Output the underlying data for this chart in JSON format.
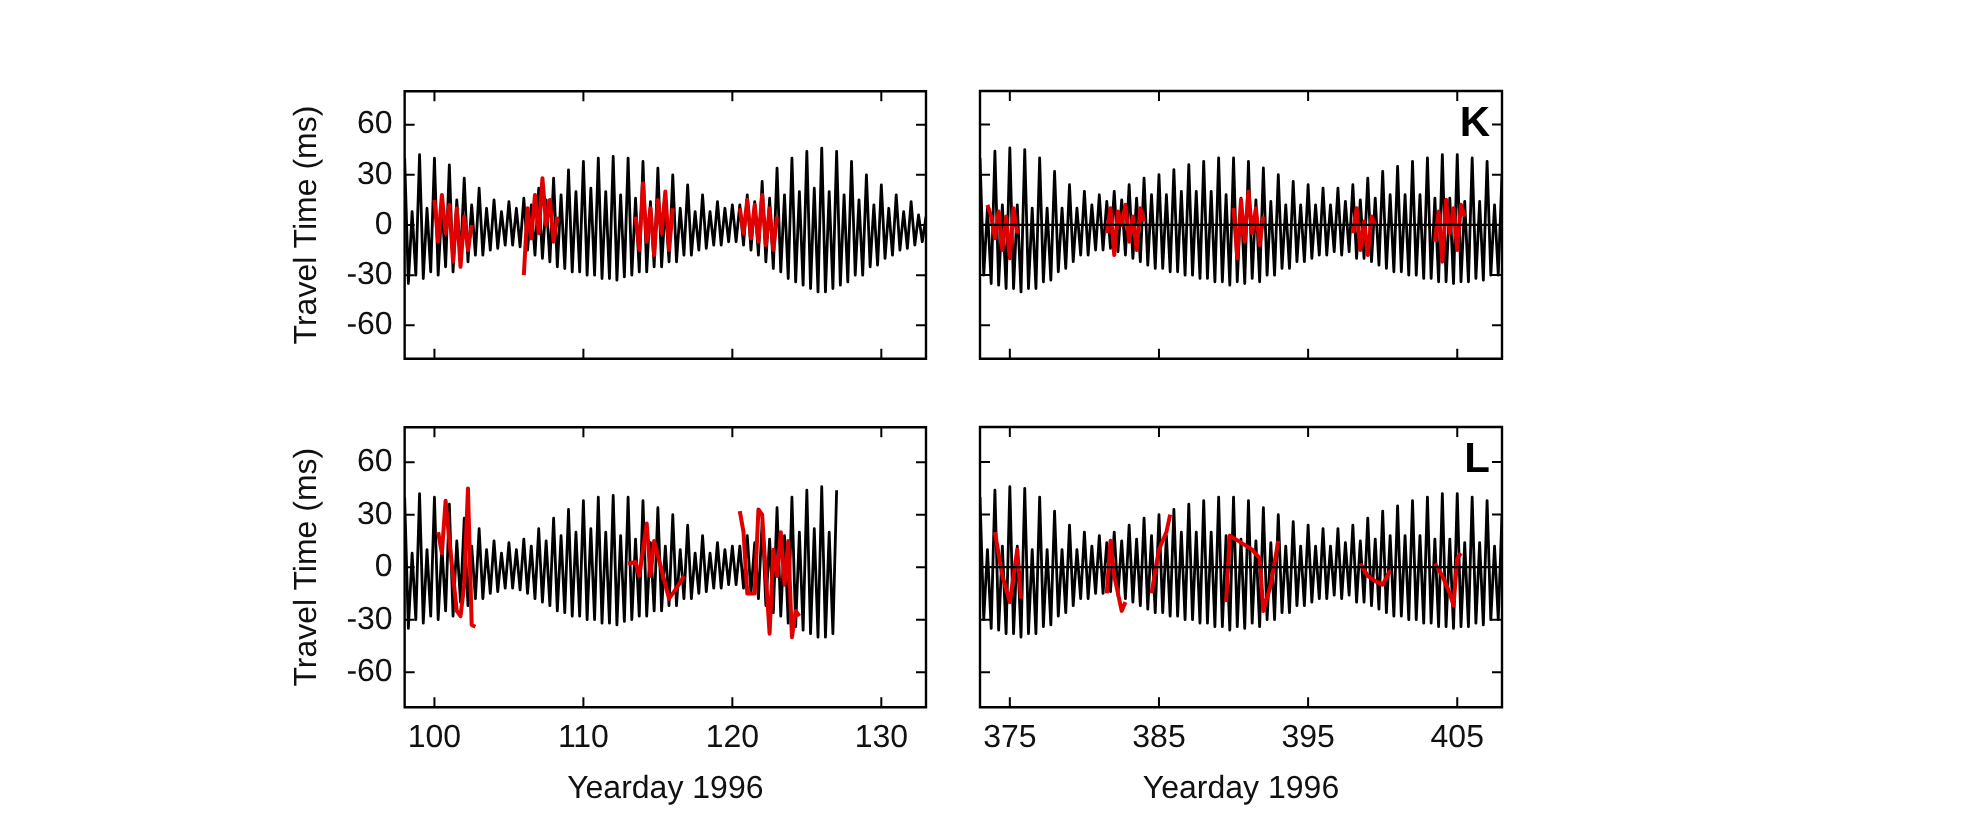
{
  "chart_data": [
    {
      "type": "line",
      "ylabel": "Travel Time (ms)",
      "xlim": [
        98,
        133
      ],
      "xticks": [
        100,
        110,
        120,
        130
      ],
      "ylim": [
        -80,
        80
      ],
      "yticks": [
        -60,
        -30,
        0,
        30,
        60
      ],
      "tick_labels": "y",
      "grid": false,
      "legend": false,
      "marker": "none",
      "line_style": "solid",
      "x": [
        98,
        98.25,
        98.5,
        98.75,
        99,
        99.25,
        99.5,
        99.75,
        100,
        100.25,
        100.5,
        100.75,
        101,
        101.25,
        101.5,
        101.75,
        102,
        102.25,
        102.5,
        102.75,
        103,
        103.25,
        103.5,
        103.75,
        104,
        104.25,
        104.5,
        104.75,
        105,
        105.25,
        105.5,
        105.75,
        106,
        106.25,
        106.5,
        106.75,
        107,
        107.25,
        107.5,
        107.75,
        108,
        108.25,
        108.5,
        108.75,
        109,
        109.25,
        109.5,
        109.75,
        110,
        110.25,
        110.5,
        110.75,
        111,
        111.25,
        111.5,
        111.75,
        112,
        112.25,
        112.5,
        112.75,
        113,
        113.25,
        113.5,
        113.75,
        114,
        114.25,
        114.5,
        114.75,
        115,
        115.25,
        115.5,
        115.75,
        116,
        116.25,
        116.5,
        116.75,
        117,
        117.25,
        117.5,
        117.75,
        118,
        118.25,
        118.5,
        118.75,
        119,
        119.25,
        119.5,
        119.75,
        120,
        120.25,
        120.5,
        120.75,
        121,
        121.25,
        121.5,
        121.75,
        122,
        122.25,
        122.5,
        122.75,
        123,
        123.25,
        123.5,
        123.75,
        124,
        124.25,
        124.5,
        124.75,
        125,
        125.25,
        125.5,
        125.75,
        126,
        126.25,
        126.5,
        126.75,
        127,
        127.25,
        127.5,
        127.75,
        128,
        128.25,
        128.5,
        128.75,
        129,
        129.25,
        129.5,
        129.75,
        130,
        130.25,
        130.5,
        130.75,
        131,
        131.25,
        131.5,
        131.75,
        132,
        132.25,
        132.5,
        132.75,
        133
      ],
      "series": [
        {
          "color": "#000000",
          "values": [
            40,
            -35,
            8,
            -30,
            42,
            -32,
            10,
            -28,
            40,
            -30,
            12,
            -25,
            36,
            -28,
            15,
            -20,
            28,
            -22,
            12,
            -18,
            22,
            -18,
            10,
            -15,
            15,
            -14,
            8,
            -12,
            14,
            -12,
            10,
            -13,
            16,
            -15,
            12,
            -18,
            22,
            -20,
            15,
            -22,
            28,
            -25,
            18,
            -26,
            33,
            -28,
            20,
            -28,
            38,
            -30,
            22,
            -30,
            40,
            -32,
            20,
            -32,
            41,
            -33,
            18,
            -31,
            40,
            -30,
            16,
            -28,
            38,
            -28,
            14,
            -25,
            34,
            -25,
            12,
            -22,
            30,
            -22,
            10,
            -18,
            24,
            -18,
            8,
            -15,
            18,
            -14,
            8,
            -12,
            14,
            -12,
            10,
            -10,
            12,
            -10,
            12,
            -12,
            18,
            -15,
            14,
            -18,
            26,
            -22,
            16,
            -26,
            34,
            -28,
            18,
            -32,
            40,
            -34,
            20,
            -36,
            44,
            -38,
            22,
            -40,
            46,
            -40,
            20,
            -38,
            44,
            -36,
            18,
            -34,
            38,
            -30,
            15,
            -30,
            30,
            -25,
            12,
            -24,
            24,
            -20,
            10,
            -18,
            18,
            -15,
            8,
            -14,
            14,
            -12,
            6,
            -10,
            5
          ]
        },
        {
          "color": "#e00000",
          "x": [
            100,
            100.25,
            100.5,
            100.75,
            101,
            101.25,
            101.5,
            101.75,
            102,
            102.25,
            102.5,
            104,
            106,
            106.25,
            106.5,
            106.75,
            107,
            107.25,
            107.5,
            107.75,
            108,
            108.25,
            111,
            113.5,
            113.75,
            114,
            114.25,
            114.5,
            114.75,
            115,
            115.25,
            115.5,
            115.75,
            116,
            118,
            120.5,
            120.75,
            121,
            121.25,
            121.5,
            121.75,
            122,
            122.25,
            122.5,
            122.75,
            123
          ],
          "values": [
            15,
            -10,
            18,
            -5,
            12,
            -22,
            10,
            -25,
            5,
            -15,
            0,
            null,
            -30,
            10,
            -8,
            18,
            -5,
            28,
            0,
            15,
            -10,
            5,
            null,
            5,
            -15,
            25,
            -10,
            10,
            -18,
            15,
            -5,
            20,
            -15,
            10,
            null,
            10,
            -5,
            15,
            -8,
            12,
            -10,
            18,
            -12,
            10,
            -15,
            5
          ]
        }
      ]
    },
    {
      "type": "line",
      "xlim": [
        373,
        408
      ],
      "xticks": [
        375,
        385,
        395,
        405
      ],
      "ylim": [
        -80,
        80
      ],
      "yticks": [
        -60,
        -30,
        0,
        30,
        60
      ],
      "tick_labels": false,
      "grid": false,
      "legend": false,
      "marker": "none",
      "line_style": "solid",
      "annotations": [
        "K"
      ],
      "ref_lines": [
        {
          "axis": "y",
          "value": 0,
          "color": "#000000"
        }
      ],
      "x": [
        373,
        373.25,
        373.5,
        373.75,
        374,
        374.25,
        374.5,
        374.75,
        375,
        375.25,
        375.5,
        375.75,
        376,
        376.25,
        376.5,
        376.75,
        377,
        377.25,
        377.5,
        377.75,
        378,
        378.25,
        378.5,
        378.75,
        379,
        379.25,
        379.5,
        379.75,
        380,
        380.25,
        380.5,
        380.75,
        381,
        381.25,
        381.5,
        381.75,
        382,
        382.25,
        382.5,
        382.75,
        383,
        383.25,
        383.5,
        383.75,
        384,
        384.25,
        384.5,
        384.75,
        385,
        385.25,
        385.5,
        385.75,
        386,
        386.25,
        386.5,
        386.75,
        387,
        387.25,
        387.5,
        387.75,
        388,
        388.25,
        388.5,
        388.75,
        389,
        389.25,
        389.5,
        389.75,
        390,
        390.25,
        390.5,
        390.75,
        391,
        391.25,
        391.5,
        391.75,
        392,
        392.25,
        392.5,
        392.75,
        393,
        393.25,
        393.5,
        393.75,
        394,
        394.25,
        394.5,
        394.75,
        395,
        395.25,
        395.5,
        395.75,
        396,
        396.25,
        396.5,
        396.75,
        397,
        397.25,
        397.5,
        397.75,
        398,
        398.25,
        398.5,
        398.75,
        399,
        399.25,
        399.5,
        399.75,
        400,
        400.25,
        400.5,
        400.75,
        401,
        401.25,
        401.5,
        401.75,
        402,
        402.25,
        402.5,
        402.75,
        403,
        403.25,
        403.5,
        403.75,
        404,
        404.25,
        404.5,
        404.75,
        405,
        405.25,
        405.5,
        405.75,
        406,
        406.25,
        406.5,
        406.75,
        407,
        407.25,
        407.5,
        407.75,
        408
      ],
      "series": [
        {
          "type": "line",
          "color": "#000000",
          "values": [
            40,
            -30,
            10,
            -35,
            44,
            -36,
            12,
            -38,
            46,
            -38,
            12,
            -40,
            45,
            -38,
            10,
            -38,
            40,
            -34,
            10,
            -33,
            32,
            -28,
            10,
            -26,
            24,
            -22,
            10,
            -18,
            20,
            -18,
            12,
            -15,
            18,
            -15,
            14,
            -14,
            20,
            -16,
            15,
            -18,
            24,
            -20,
            16,
            -22,
            28,
            -24,
            18,
            -26,
            30,
            -26,
            18,
            -28,
            33,
            -28,
            20,
            -30,
            36,
            -30,
            20,
            -32,
            38,
            -32,
            20,
            -34,
            40,
            -34,
            18,
            -36,
            40,
            -34,
            16,
            -35,
            38,
            -32,
            15,
            -34,
            34,
            -30,
            14,
            -30,
            30,
            -26,
            12,
            -26,
            26,
            -22,
            12,
            -22,
            24,
            -20,
            12,
            -18,
            22,
            -18,
            12,
            -16,
            22,
            -18,
            14,
            -16,
            24,
            -20,
            15,
            -20,
            28,
            -22,
            16,
            -24,
            32,
            -26,
            18,
            -28,
            35,
            -28,
            18,
            -30,
            38,
            -30,
            18,
            -32,
            40,
            -32,
            16,
            -34,
            42,
            -34,
            16,
            -35,
            42,
            -34,
            14,
            -34,
            40,
            -32,
            14,
            -33,
            38,
            -30,
            12,
            -30,
            30
          ]
        },
        {
          "color": "#e00000",
          "x": [
            373.5,
            373.75,
            374,
            374.25,
            374.5,
            374.75,
            375,
            375.25,
            375.5,
            378,
            381.5,
            381.75,
            382,
            382.25,
            382.5,
            382.75,
            383,
            383.25,
            383.5,
            383.75,
            384,
            387,
            390,
            390.25,
            390.5,
            390.75,
            391,
            391.25,
            391.5,
            391.75,
            392,
            395,
            398,
            398.25,
            398.5,
            398.75,
            399,
            399.25,
            399.5,
            401,
            403.5,
            403.75,
            404,
            404.25,
            404.5,
            404.75,
            405,
            405.25,
            405.5
          ],
          "values": [
            12,
            5,
            -8,
            8,
            -15,
            5,
            -20,
            10,
            -5,
            null,
            -5,
            10,
            -18,
            8,
            0,
            12,
            -10,
            5,
            -15,
            10,
            2,
            null,
            10,
            -20,
            15,
            -10,
            20,
            -5,
            10,
            -12,
            5,
            null,
            -5,
            10,
            -15,
            2,
            -18,
            5,
            0,
            null,
            -10,
            8,
            -22,
            15,
            -5,
            10,
            -15,
            12,
            5
          ]
        }
      ]
    },
    {
      "type": "line",
      "xlabel": "Yearday 1996",
      "ylabel": "Travel Time (ms)",
      "xlim": [
        98,
        133
      ],
      "xticks": [
        100,
        110,
        120,
        130
      ],
      "ylim": [
        -80,
        80
      ],
      "yticks": [
        -60,
        -30,
        0,
        30,
        60
      ],
      "grid": false,
      "legend": false,
      "marker": "none",
      "line_style": "solid",
      "x": [
        98,
        98.25,
        98.5,
        98.75,
        99,
        99.25,
        99.5,
        99.75,
        100,
        100.25,
        100.5,
        100.75,
        101,
        101.25,
        101.5,
        101.75,
        102,
        102.25,
        102.5,
        102.75,
        103,
        103.25,
        103.5,
        103.75,
        104,
        104.25,
        104.5,
        104.75,
        105,
        105.25,
        105.5,
        105.75,
        106,
        106.25,
        106.5,
        106.75,
        107,
        107.25,
        107.5,
        107.75,
        108,
        108.25,
        108.5,
        108.75,
        109,
        109.25,
        109.5,
        109.75,
        110,
        110.25,
        110.5,
        110.75,
        111,
        111.25,
        111.5,
        111.75,
        112,
        112.25,
        112.5,
        112.75,
        113,
        113.25,
        113.5,
        113.75,
        114,
        114.25,
        114.5,
        114.75,
        115,
        115.25,
        115.5,
        115.75,
        116,
        116.25,
        116.5,
        116.75,
        117,
        117.25,
        117.5,
        117.75,
        118,
        118.25,
        118.5,
        118.75,
        119,
        119.25,
        119.5,
        119.75,
        120,
        120.25,
        120.5,
        120.75,
        121,
        121.25,
        121.5,
        121.75,
        122,
        122.25,
        122.5,
        122.75,
        123,
        123.25,
        123.5,
        123.75,
        124,
        124.25,
        124.5,
        124.75,
        125,
        125.25,
        125.5,
        125.75,
        126,
        126.25,
        126.5,
        126.75,
        127
      ],
      "series": [
        {
          "color": "#000000",
          "values": [
            40,
            -35,
            8,
            -30,
            42,
            -32,
            10,
            -28,
            40,
            -30,
            12,
            -25,
            36,
            -28,
            15,
            -20,
            28,
            -22,
            12,
            -18,
            22,
            -18,
            10,
            -15,
            15,
            -14,
            8,
            -12,
            14,
            -12,
            10,
            -13,
            16,
            -15,
            12,
            -18,
            22,
            -20,
            15,
            -22,
            28,
            -25,
            18,
            -26,
            33,
            -28,
            20,
            -28,
            38,
            -30,
            22,
            -30,
            40,
            -32,
            20,
            -32,
            41,
            -33,
            18,
            -31,
            40,
            -30,
            16,
            -28,
            38,
            -28,
            14,
            -25,
            34,
            -25,
            12,
            -22,
            30,
            -22,
            10,
            -18,
            24,
            -18,
            8,
            -15,
            18,
            -14,
            8,
            -12,
            14,
            -12,
            10,
            -10,
            12,
            -10,
            12,
            -12,
            18,
            -15,
            14,
            -18,
            26,
            -22,
            16,
            -26,
            34,
            -28,
            18,
            -32,
            40,
            -34,
            20,
            -36,
            44,
            -38,
            22,
            -40,
            46,
            -40,
            20,
            -38,
            44
          ]
        },
        {
          "color": "#e00000",
          "x": [
            100.25,
            100.5,
            100.75,
            101,
            101.25,
            101.5,
            101.75,
            102,
            102.25,
            102.5,
            102.75,
            108,
            113,
            113.5,
            113.75,
            114,
            114.25,
            114.5,
            114.75,
            115.75,
            116.25,
            116.75,
            118,
            120.5,
            120.75,
            121,
            121.5,
            121.75,
            122,
            122.25,
            122.5,
            122.75,
            123,
            123.25,
            123.5,
            123.75,
            124,
            124.25,
            124.5
          ],
          "values": [
            20,
            8,
            38,
            15,
            -5,
            -25,
            -28,
            -10,
            45,
            -33,
            -34,
            null,
            2,
            3,
            -5,
            10,
            25,
            -5,
            15,
            -18,
            -12,
            -5,
            null,
            32,
            20,
            -15,
            -15,
            33,
            30,
            -5,
            -38,
            10,
            -5,
            20,
            -10,
            15,
            -40,
            -25,
            -28
          ]
        }
      ]
    },
    {
      "type": "line",
      "xlabel": "Yearday 1996",
      "xlim": [
        373,
        408
      ],
      "xticks": [
        375,
        385,
        395,
        405
      ],
      "ylim": [
        -80,
        80
      ],
      "yticks": [
        -60,
        -30,
        0,
        30,
        60
      ],
      "tick_labels": "x",
      "grid": false,
      "legend": false,
      "marker": "none",
      "line_style": "solid",
      "annotations": [
        "L"
      ],
      "ref_lines": [
        {
          "axis": "y",
          "value": 0,
          "color": "#000000"
        }
      ],
      "x": [
        373,
        373.25,
        373.5,
        373.75,
        374,
        374.25,
        374.5,
        374.75,
        375,
        375.25,
        375.5,
        375.75,
        376,
        376.25,
        376.5,
        376.75,
        377,
        377.25,
        377.5,
        377.75,
        378,
        378.25,
        378.5,
        378.75,
        379,
        379.25,
        379.5,
        379.75,
        380,
        380.25,
        380.5,
        380.75,
        381,
        381.25,
        381.5,
        381.75,
        382,
        382.25,
        382.5,
        382.75,
        383,
        383.25,
        383.5,
        383.75,
        384,
        384.25,
        384.5,
        384.75,
        385,
        385.25,
        385.5,
        385.75,
        386,
        386.25,
        386.5,
        386.75,
        387,
        387.25,
        387.5,
        387.75,
        388,
        388.25,
        388.5,
        388.75,
        389,
        389.25,
        389.5,
        389.75,
        390,
        390.25,
        390.5,
        390.75,
        391,
        391.25,
        391.5,
        391.75,
        392,
        392.25,
        392.5,
        392.75,
        393,
        393.25,
        393.5,
        393.75,
        394,
        394.25,
        394.5,
        394.75,
        395,
        395.25,
        395.5,
        395.75,
        396,
        396.25,
        396.5,
        396.75,
        397,
        397.25,
        397.5,
        397.75,
        398,
        398.25,
        398.5,
        398.75,
        399,
        399.25,
        399.5,
        399.75,
        400,
        400.25,
        400.5,
        400.75,
        401,
        401.25,
        401.5,
        401.75,
        402,
        402.25,
        402.5,
        402.75,
        403,
        403.25,
        403.5,
        403.75,
        404,
        404.25,
        404.5,
        404.75,
        405,
        405.25,
        405.5,
        405.75,
        406,
        406.25,
        406.5,
        406.75,
        407,
        407.25,
        407.5,
        407.75,
        408
      ],
      "series": [
        {
          "type": "line",
          "color": "#000000",
          "values": [
            40,
            -30,
            10,
            -35,
            44,
            -36,
            12,
            -38,
            46,
            -38,
            12,
            -40,
            45,
            -38,
            10,
            -38,
            40,
            -34,
            10,
            -33,
            32,
            -28,
            10,
            -26,
            24,
            -22,
            10,
            -18,
            20,
            -18,
            12,
            -15,
            18,
            -15,
            14,
            -14,
            20,
            -16,
            15,
            -18,
            24,
            -20,
            16,
            -22,
            28,
            -24,
            18,
            -26,
            30,
            -26,
            18,
            -28,
            33,
            -28,
            20,
            -30,
            36,
            -30,
            20,
            -32,
            38,
            -32,
            20,
            -34,
            40,
            -34,
            18,
            -36,
            40,
            -34,
            16,
            -35,
            38,
            -32,
            15,
            -34,
            34,
            -30,
            14,
            -30,
            30,
            -26,
            12,
            -26,
            26,
            -22,
            12,
            -22,
            24,
            -20,
            12,
            -18,
            22,
            -18,
            12,
            -16,
            22,
            -18,
            14,
            -16,
            24,
            -20,
            15,
            -20,
            28,
            -22,
            16,
            -24,
            32,
            -26,
            18,
            -28,
            35,
            -28,
            18,
            -30,
            38,
            -30,
            18,
            -32,
            40,
            -32,
            16,
            -34,
            42,
            -34,
            16,
            -35,
            42,
            -34,
            14,
            -34,
            40,
            -32,
            14,
            -33,
            38,
            -30,
            12,
            -30,
            30
          ]
        },
        {
          "color": "#e00000",
          "x": [
            374,
            374.5,
            375,
            375.5,
            375.75,
            378,
            381.5,
            381.75,
            382,
            382.5,
            382.75,
            383.5,
            384.5,
            385,
            385.5,
            385.75,
            387,
            389.5,
            389.75,
            390.5,
            391.25,
            391.75,
            392,
            392.5,
            393,
            396,
            398.5,
            399,
            399.5,
            400,
            400.5,
            402,
            403.5,
            404,
            404.5,
            404.75,
            405,
            405.25
          ],
          "values": [
            20,
            -5,
            -20,
            10,
            -18,
            null,
            -15,
            15,
            -5,
            -25,
            -20,
            null,
            -15,
            10,
            20,
            30,
            null,
            -20,
            18,
            14,
            10,
            5,
            -25,
            -10,
            15,
            null,
            2,
            -5,
            -8,
            -10,
            -2,
            null,
            2,
            -5,
            -15,
            -22,
            5,
            8
          ]
        }
      ]
    }
  ]
}
